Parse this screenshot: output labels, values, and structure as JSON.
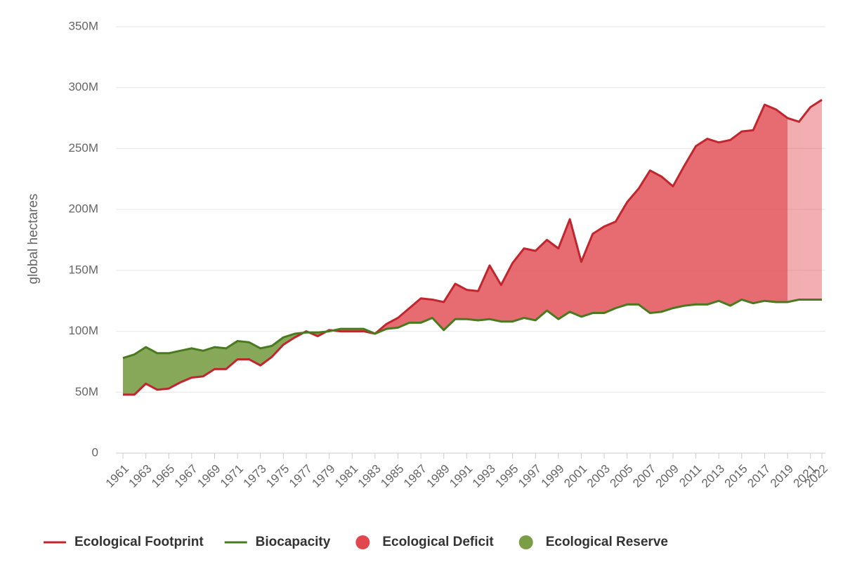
{
  "chart_data": {
    "type": "line-area",
    "y_label": "global hectares",
    "x": [
      1961,
      1962,
      1963,
      1964,
      1965,
      1966,
      1967,
      1968,
      1969,
      1970,
      1971,
      1972,
      1973,
      1974,
      1975,
      1976,
      1977,
      1978,
      1979,
      1980,
      1981,
      1982,
      1983,
      1984,
      1985,
      1986,
      1987,
      1988,
      1989,
      1990,
      1991,
      1992,
      1993,
      1994,
      1995,
      1996,
      1997,
      1998,
      1999,
      2000,
      2001,
      2002,
      2003,
      2004,
      2005,
      2006,
      2007,
      2008,
      2009,
      2010,
      2011,
      2012,
      2013,
      2014,
      2015,
      2016,
      2017,
      2018,
      2019,
      2020,
      2021,
      2022
    ],
    "series": [
      {
        "name": "Ecological Footprint",
        "color": "#c0262d",
        "values": [
          48000000,
          48000000,
          57000000,
          52000000,
          53000000,
          58000000,
          62000000,
          63000000,
          69000000,
          69000000,
          77000000,
          77000000,
          72000000,
          79000000,
          89000000,
          95000000,
          100000000,
          96000000,
          101000000,
          100000000,
          100000000,
          100000000,
          98000000,
          106000000,
          111000000,
          119000000,
          127000000,
          126000000,
          124000000,
          139000000,
          134000000,
          133000000,
          154000000,
          138000000,
          156000000,
          168000000,
          166000000,
          175000000,
          168000000,
          192000000,
          157000000,
          180000000,
          186000000,
          190000000,
          206000000,
          217000000,
          232000000,
          227000000,
          219000000,
          236000000,
          252000000,
          258000000,
          255000000,
          257000000,
          264000000,
          265000000,
          286000000,
          282000000,
          275000000,
          272000000,
          284000000,
          290000000
        ]
      },
      {
        "name": "Biocapacity",
        "color": "#4a7a1f",
        "values": [
          78000000,
          81000000,
          87000000,
          82000000,
          82000000,
          84000000,
          86000000,
          84000000,
          87000000,
          86000000,
          92000000,
          91000000,
          86000000,
          88000000,
          95000000,
          98000000,
          99000000,
          99000000,
          100000000,
          102000000,
          102000000,
          102000000,
          98000000,
          102000000,
          103000000,
          107000000,
          107000000,
          111000000,
          101000000,
          110000000,
          110000000,
          109000000,
          110000000,
          108000000,
          108000000,
          111000000,
          109000000,
          117000000,
          110000000,
          116000000,
          112000000,
          115000000,
          115000000,
          119000000,
          122000000,
          122000000,
          115000000,
          116000000,
          119000000,
          121000000,
          122000000,
          122000000,
          125000000,
          121000000,
          126000000,
          123000000,
          125000000,
          124000000,
          124000000,
          126000000,
          126000000,
          126000000
        ]
      }
    ],
    "areas": [
      {
        "name": "Ecological Deficit",
        "color": "#e0474f"
      },
      {
        "name": "Ecological Reserve",
        "color": "#7a9e46"
      }
    ],
    "projection_start": 2019,
    "xlim": [
      1961,
      2022
    ],
    "xticks": [
      1961,
      1963,
      1965,
      1967,
      1969,
      1971,
      1973,
      1975,
      1977,
      1979,
      1981,
      1983,
      1985,
      1987,
      1989,
      1991,
      1993,
      1995,
      1997,
      1999,
      2001,
      2003,
      2005,
      2007,
      2009,
      2011,
      2013,
      2015,
      2017,
      2019,
      2021,
      2022
    ],
    "ylim": [
      0,
      350000000
    ],
    "yticks": [
      0,
      {
        "value": 50000000,
        "label": "50M"
      },
      {
        "value": 100000000,
        "label": "100M"
      },
      {
        "value": 150000000,
        "label": "150M"
      },
      {
        "value": 200000000,
        "label": "200M"
      },
      {
        "value": 250000000,
        "label": "250M"
      },
      {
        "value": 300000000,
        "label": "300M"
      },
      {
        "value": 350000000,
        "label": "350M"
      }
    ],
    "grid": true
  }
}
